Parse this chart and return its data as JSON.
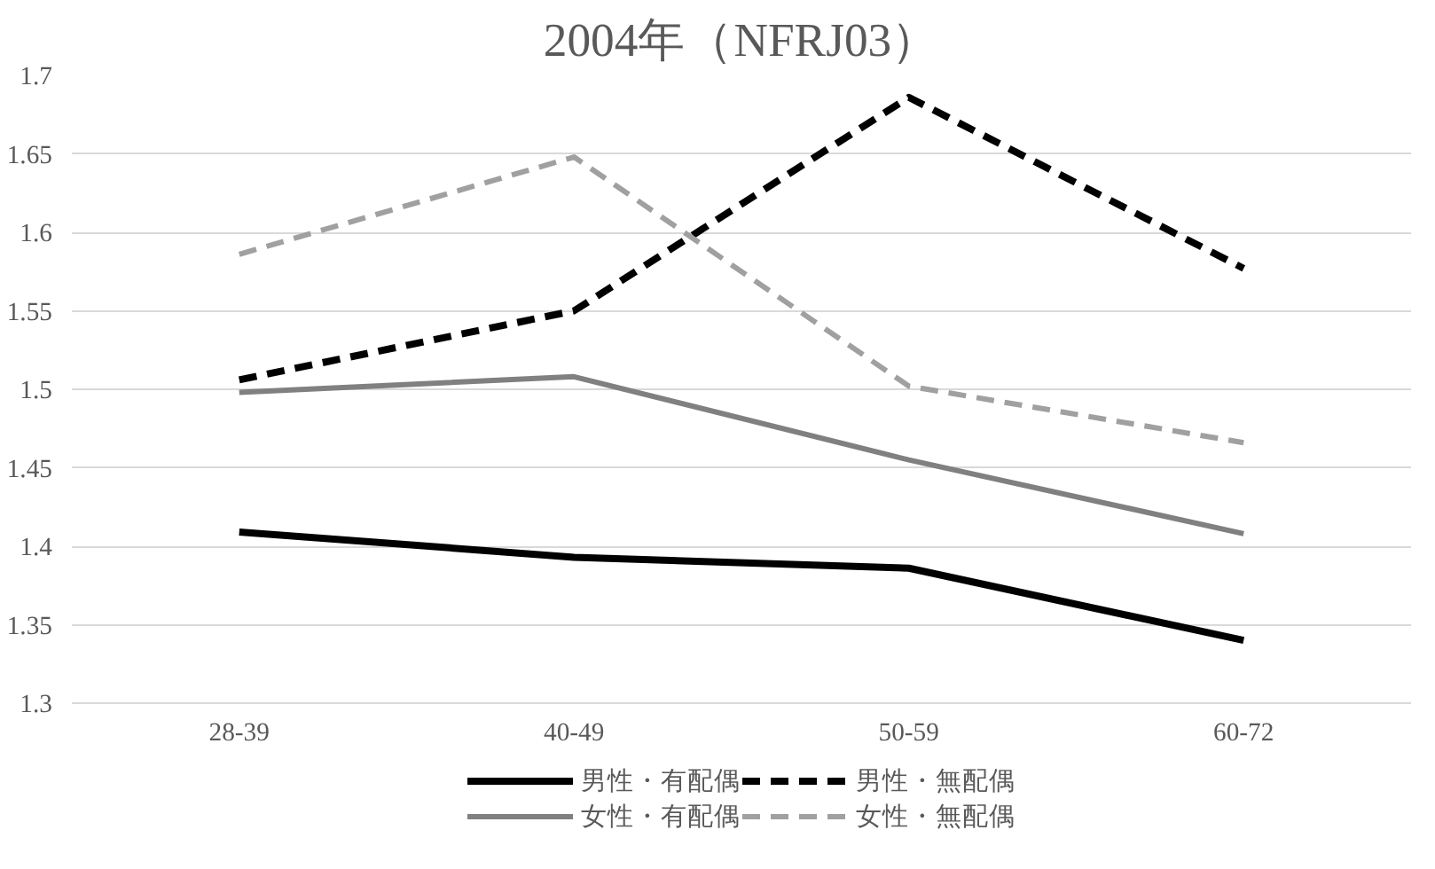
{
  "chart_data": {
    "type": "line",
    "title": "2004年（NFRJ03）",
    "categories": [
      "28-39",
      "40-49",
      "50-59",
      "60-72"
    ],
    "series": [
      {
        "name": "男性・有配偶",
        "color": "#000000",
        "line_style": "solid",
        "values": [
          1.409,
          1.393,
          1.386,
          1.34
        ]
      },
      {
        "name": "男性・無配偶",
        "color": "#000000",
        "line_style": "dashed",
        "values": [
          1.506,
          1.55,
          1.686,
          1.577
        ]
      },
      {
        "name": "女性・有配偶",
        "color": "#808080",
        "line_style": "solid",
        "values": [
          1.498,
          1.508,
          1.455,
          1.408
        ]
      },
      {
        "name": "女性・無配偶",
        "color": "#a0a0a0",
        "line_style": "dashed",
        "values": [
          1.586,
          1.648,
          1.502,
          1.466
        ]
      }
    ],
    "ylim": [
      1.3,
      1.7
    ],
    "yticks": [
      1.3,
      1.35,
      1.4,
      1.45,
      1.5,
      1.55,
      1.6,
      1.65,
      1.7
    ],
    "grid": "y",
    "legend": "bottom",
    "marker": "none"
  }
}
